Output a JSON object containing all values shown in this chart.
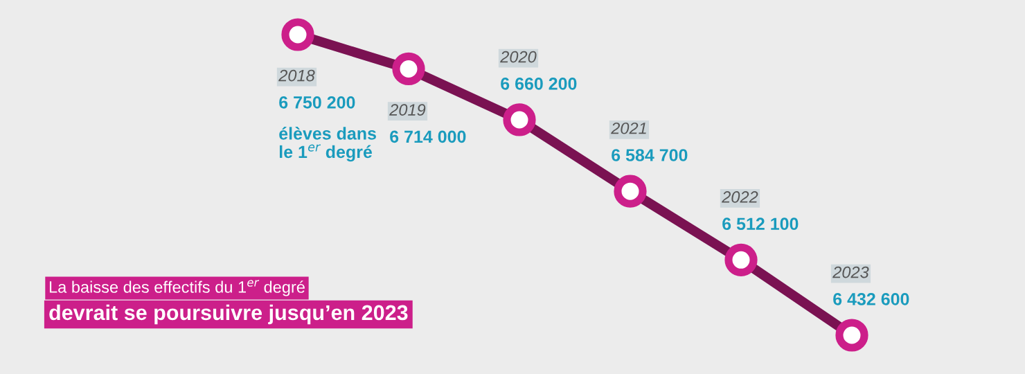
{
  "chart_data": {
    "type": "line",
    "categories": [
      "2018",
      "2019",
      "2020",
      "2021",
      "2022",
      "2023"
    ],
    "series": [
      {
        "color": "#7a1252",
        "values": [
          6750200,
          6714000,
          6660200,
          6584700,
          6512100,
          6432600
        ],
        "value_labels": [
          "6 750 200",
          "6 714 000",
          "6 660 200",
          "6 584 700",
          "6 512 100",
          "6 432 600"
        ]
      }
    ],
    "marker": "circle",
    "line_style": "solid",
    "annotations": [
      "élèves dans\nle 1$^{er}$ degré",
      "La baisse des effectifs du 1$^{er}$ degré",
      "devrait se poursuivre jusqu’en 2023"
    ]
  }
}
